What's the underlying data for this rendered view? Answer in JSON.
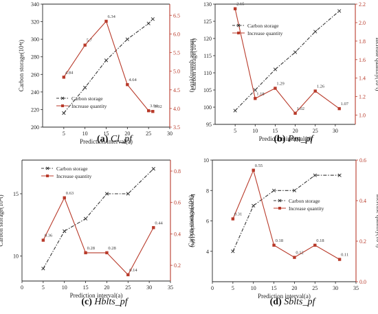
{
  "chart_data": [
    {
      "type": "line",
      "caption_letter": "(a)",
      "caption_name": "Cl_pf",
      "xlabel": "Prediction interval(a)",
      "ylabel": "Carbon storage(10⁴t)",
      "ylabel_right": "Increase quantity(10⁴t)",
      "xlim": [
        0,
        30
      ],
      "xticks": [
        5,
        10,
        15,
        20,
        25,
        30
      ],
      "ylim": [
        200,
        340
      ],
      "yticks": [
        200,
        220,
        240,
        260,
        280,
        300,
        320,
        340
      ],
      "ylim_right": [
        3.5,
        6.8
      ],
      "yticks_right": [
        3.5,
        4.0,
        4.5,
        5.0,
        5.5,
        6.0,
        6.5
      ],
      "right_tick_decimals": 1,
      "legend_position": "lower-left",
      "series": [
        {
          "name": "Carbon storage",
          "axis": "left",
          "style": "dashdot",
          "marker": "x",
          "color": "#333333",
          "x": [
            5,
            10,
            15,
            20,
            25,
            26
          ],
          "values": [
            216,
            245,
            276,
            300,
            318,
            323
          ]
        },
        {
          "name": "Increase quantity",
          "axis": "right",
          "style": "solid",
          "marker": "square",
          "color": "#b83a2a",
          "x": [
            5,
            10,
            15,
            20,
            25,
            26
          ],
          "values": [
            4.84,
            5.7,
            6.34,
            4.64,
            3.94,
            3.92
          ],
          "labels": [
            "4.84",
            "5.7",
            "6.34",
            "4.64",
            "3.94",
            "3.92"
          ]
        }
      ]
    },
    {
      "type": "line",
      "caption_letter": "(b)",
      "caption_name": "Pm_pf",
      "xlabel": "Prediction interval(a)",
      "ylabel": "Carbon storage(10⁴t)",
      "ylabel_right": "Increase quantity(10⁴t)",
      "xlim": [
        0,
        35
      ],
      "xticks": [
        5,
        10,
        15,
        20,
        25,
        30
      ],
      "ylim": [
        95,
        130
      ],
      "yticks": [
        95,
        100,
        105,
        110,
        115,
        120,
        125,
        130
      ],
      "ylim_right": [
        0.9,
        2.2
      ],
      "yticks_right": [
        1.0,
        1.2,
        1.4,
        1.6,
        1.8,
        2.0,
        2.2
      ],
      "right_tick_decimals": 1,
      "legend_position": "top-left",
      "series": [
        {
          "name": "Carbon storage",
          "axis": "left",
          "style": "dashdot",
          "marker": "x",
          "color": "#333333",
          "x": [
            5,
            10,
            15,
            20,
            25,
            31
          ],
          "values": [
            99,
            105,
            111,
            116,
            122,
            128
          ]
        },
        {
          "name": "Increase quantity",
          "axis": "right",
          "style": "solid",
          "marker": "square",
          "color": "#b83a2a",
          "x": [
            5,
            10,
            15,
            20,
            25,
            31
          ],
          "values": [
            2.15,
            1.18,
            1.29,
            1.02,
            1.26,
            1.07
          ],
          "labels": [
            "2.15",
            "1.18",
            "1.29",
            "1.02",
            "1.26",
            "1.07"
          ]
        }
      ]
    },
    {
      "type": "line",
      "caption_letter": "(c)",
      "caption_name": "Hblts_pf",
      "xlabel": "Prediction interval(a)",
      "ylabel": "Carbon storage(10⁴t)",
      "ylabel_right": "Increase quantity(10⁴t)",
      "xlim": [
        0,
        35
      ],
      "xticks": [
        0,
        5,
        10,
        15,
        20,
        25,
        30,
        35
      ],
      "ylim": [
        8,
        17.7
      ],
      "yticks": [
        10,
        15
      ],
      "ylim_right": [
        0.1,
        0.87
      ],
      "yticks_right": [
        0.2,
        0.4,
        0.6,
        0.8
      ],
      "right_tick_decimals": 1,
      "legend_position": "top-left",
      "series": [
        {
          "name": "Carbon storage",
          "axis": "left",
          "style": "dashdot",
          "marker": "x",
          "color": "#333333",
          "x": [
            5,
            10,
            15,
            20,
            25,
            31
          ],
          "values": [
            9,
            12,
            13,
            15,
            15,
            17
          ]
        },
        {
          "name": "Increase quantity",
          "axis": "right",
          "style": "solid",
          "marker": "square",
          "color": "#b83a2a",
          "x": [
            5,
            10,
            15,
            20,
            25,
            31
          ],
          "values": [
            0.36,
            0.63,
            0.28,
            0.28,
            0.14,
            0.44
          ],
          "labels": [
            "0.36",
            "0.63",
            "0.28",
            "0.28",
            "0.14",
            "0.44"
          ]
        }
      ]
    },
    {
      "type": "line",
      "caption_letter": "(d)",
      "caption_name": "Sblts_pf",
      "xlabel": "Prediction interval(a)",
      "ylabel": "Carbon storage(10⁴t)",
      "ylabel_right": "Increase quantity(10⁴t)",
      "xlim": [
        0,
        35
      ],
      "xticks": [
        0,
        5,
        10,
        15,
        20,
        25,
        30,
        35
      ],
      "ylim": [
        2,
        10
      ],
      "yticks": [
        4,
        6,
        8,
        10
      ],
      "ylim_right": [
        0.0,
        0.6
      ],
      "yticks_right": [
        0.0,
        0.2,
        0.4,
        0.6
      ],
      "right_tick_decimals": 1,
      "legend_position": "center-right",
      "series": [
        {
          "name": "Carbon storage",
          "axis": "left",
          "style": "dashdot",
          "marker": "x",
          "color": "#333333",
          "x": [
            5,
            10,
            15,
            20,
            25,
            31
          ],
          "values": [
            4,
            7,
            8,
            8,
            9,
            9
          ]
        },
        {
          "name": "Increase quantity",
          "axis": "right",
          "style": "solid",
          "marker": "square",
          "color": "#b83a2a",
          "x": [
            5,
            10,
            15,
            20,
            25,
            31
          ],
          "values": [
            0.31,
            0.55,
            0.18,
            0.12,
            0.18,
            0.11
          ],
          "labels": [
            "0.31",
            "0.55",
            "0.18",
            "0.12",
            "0.18",
            "0.11"
          ]
        }
      ]
    }
  ]
}
